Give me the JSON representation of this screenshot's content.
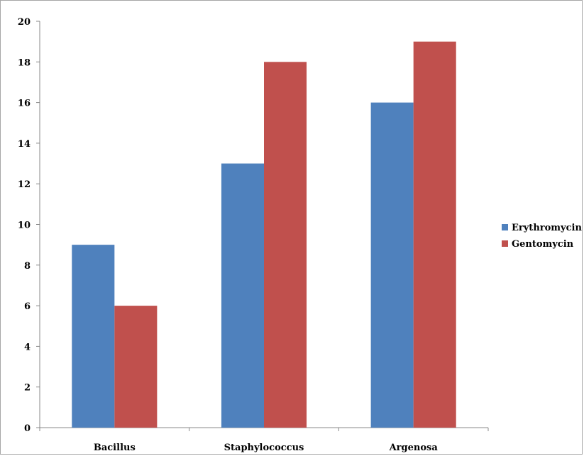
{
  "chart_data": {
    "type": "bar",
    "categories": [
      "Bacillus",
      "Staphylococcus",
      "Argenosa"
    ],
    "series": [
      {
        "name": "Erythromycin",
        "values": [
          9,
          13,
          16
        ],
        "color": "#4f81bd"
      },
      {
        "name": "Gentomycin",
        "values": [
          6,
          18,
          19
        ],
        "color": "#c0504d"
      }
    ],
    "ylim": [
      0,
      20
    ],
    "yticks": [
      0,
      2,
      4,
      6,
      8,
      10,
      12,
      14,
      16,
      18,
      20
    ],
    "grid": false,
    "legend_position": "right"
  }
}
